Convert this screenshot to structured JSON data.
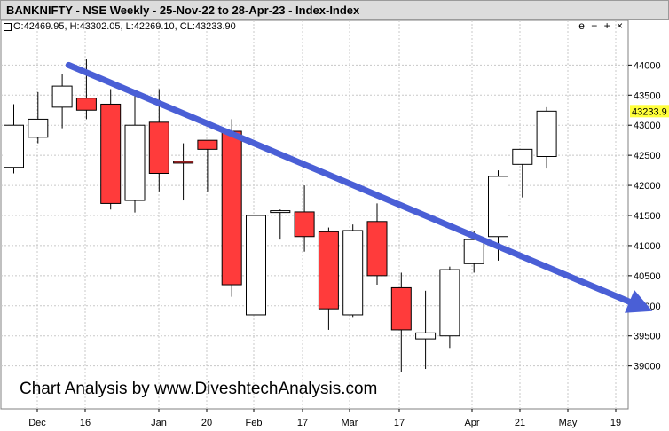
{
  "title": "BANKNIFTY  -  NSE Weekly  -  25-Nov-22 to 28-Apr-23  -  Index-Index",
  "ohlc_readout": "O:42469.95, H:43302.05, L:42269.10, CL:43233.90",
  "window_controls": "e − + ×",
  "watermark": "Chart Analysis by www.DiveshtechAnalysis.com",
  "colors": {
    "up": "#ffffff",
    "down": "#ff3b3b",
    "trendline": "#4a5fd6",
    "last_price_bg": "#ffff3a",
    "grid": "#c8c8c8"
  },
  "chart_data": {
    "type": "candlestick",
    "ylim": [
      38600,
      44500
    ],
    "y_ticks": [
      39000,
      39500,
      40000,
      40500,
      41000,
      41500,
      42000,
      42500,
      43000,
      43500,
      44000
    ],
    "x_tick_labels": [
      "Dec",
      "16",
      "Jan",
      "20",
      "Feb",
      "17",
      "Mar",
      "17",
      "Apr",
      "21",
      "May",
      "19"
    ],
    "last_price": "43233.9",
    "candles": [
      {
        "o": 42300,
        "h": 43350,
        "l": 42200,
        "c": 43000
      },
      {
        "o": 42800,
        "h": 43550,
        "l": 42700,
        "c": 43100
      },
      {
        "o": 43300,
        "h": 43850,
        "l": 42950,
        "c": 43650
      },
      {
        "o": 43450,
        "h": 44100,
        "l": 43100,
        "c": 43250
      },
      {
        "o": 43350,
        "h": 43600,
        "l": 41600,
        "c": 41700
      },
      {
        "o": 41750,
        "h": 43500,
        "l": 41550,
        "c": 43000
      },
      {
        "o": 43050,
        "h": 43600,
        "l": 41900,
        "c": 42200
      },
      {
        "o": 42400,
        "h": 42700,
        "l": 41750,
        "c": 42380
      },
      {
        "o": 42750,
        "h": 42750,
        "l": 41900,
        "c": 42600
      },
      {
        "o": 42900,
        "h": 43100,
        "l": 40150,
        "c": 40350
      },
      {
        "o": 39850,
        "h": 42000,
        "l": 39450,
        "c": 41500
      },
      {
        "o": 41550,
        "h": 41600,
        "l": 41100,
        "c": 41580
      },
      {
        "o": 41560,
        "h": 42000,
        "l": 40900,
        "c": 41150
      },
      {
        "o": 41230,
        "h": 41300,
        "l": 39600,
        "c": 39950
      },
      {
        "o": 39850,
        "h": 41350,
        "l": 39800,
        "c": 41250
      },
      {
        "o": 41400,
        "h": 41700,
        "l": 40350,
        "c": 40500
      },
      {
        "o": 40300,
        "h": 40550,
        "l": 38900,
        "c": 39600
      },
      {
        "o": 39450,
        "h": 40250,
        "l": 38950,
        "c": 39550
      },
      {
        "o": 39500,
        "h": 40650,
        "l": 39300,
        "c": 40600
      },
      {
        "o": 40700,
        "h": 41250,
        "l": 40550,
        "c": 41100
      },
      {
        "o": 41150,
        "h": 42250,
        "l": 40750,
        "c": 42150
      },
      {
        "o": 42350,
        "h": 42600,
        "l": 41800,
        "c": 42600
      },
      {
        "o": 42480,
        "h": 43300,
        "l": 42280,
        "c": 43234
      }
    ],
    "trendline": {
      "from": {
        "candle": 3,
        "value": 44000
      },
      "to": {
        "candle": 26,
        "value": 40000
      }
    }
  }
}
